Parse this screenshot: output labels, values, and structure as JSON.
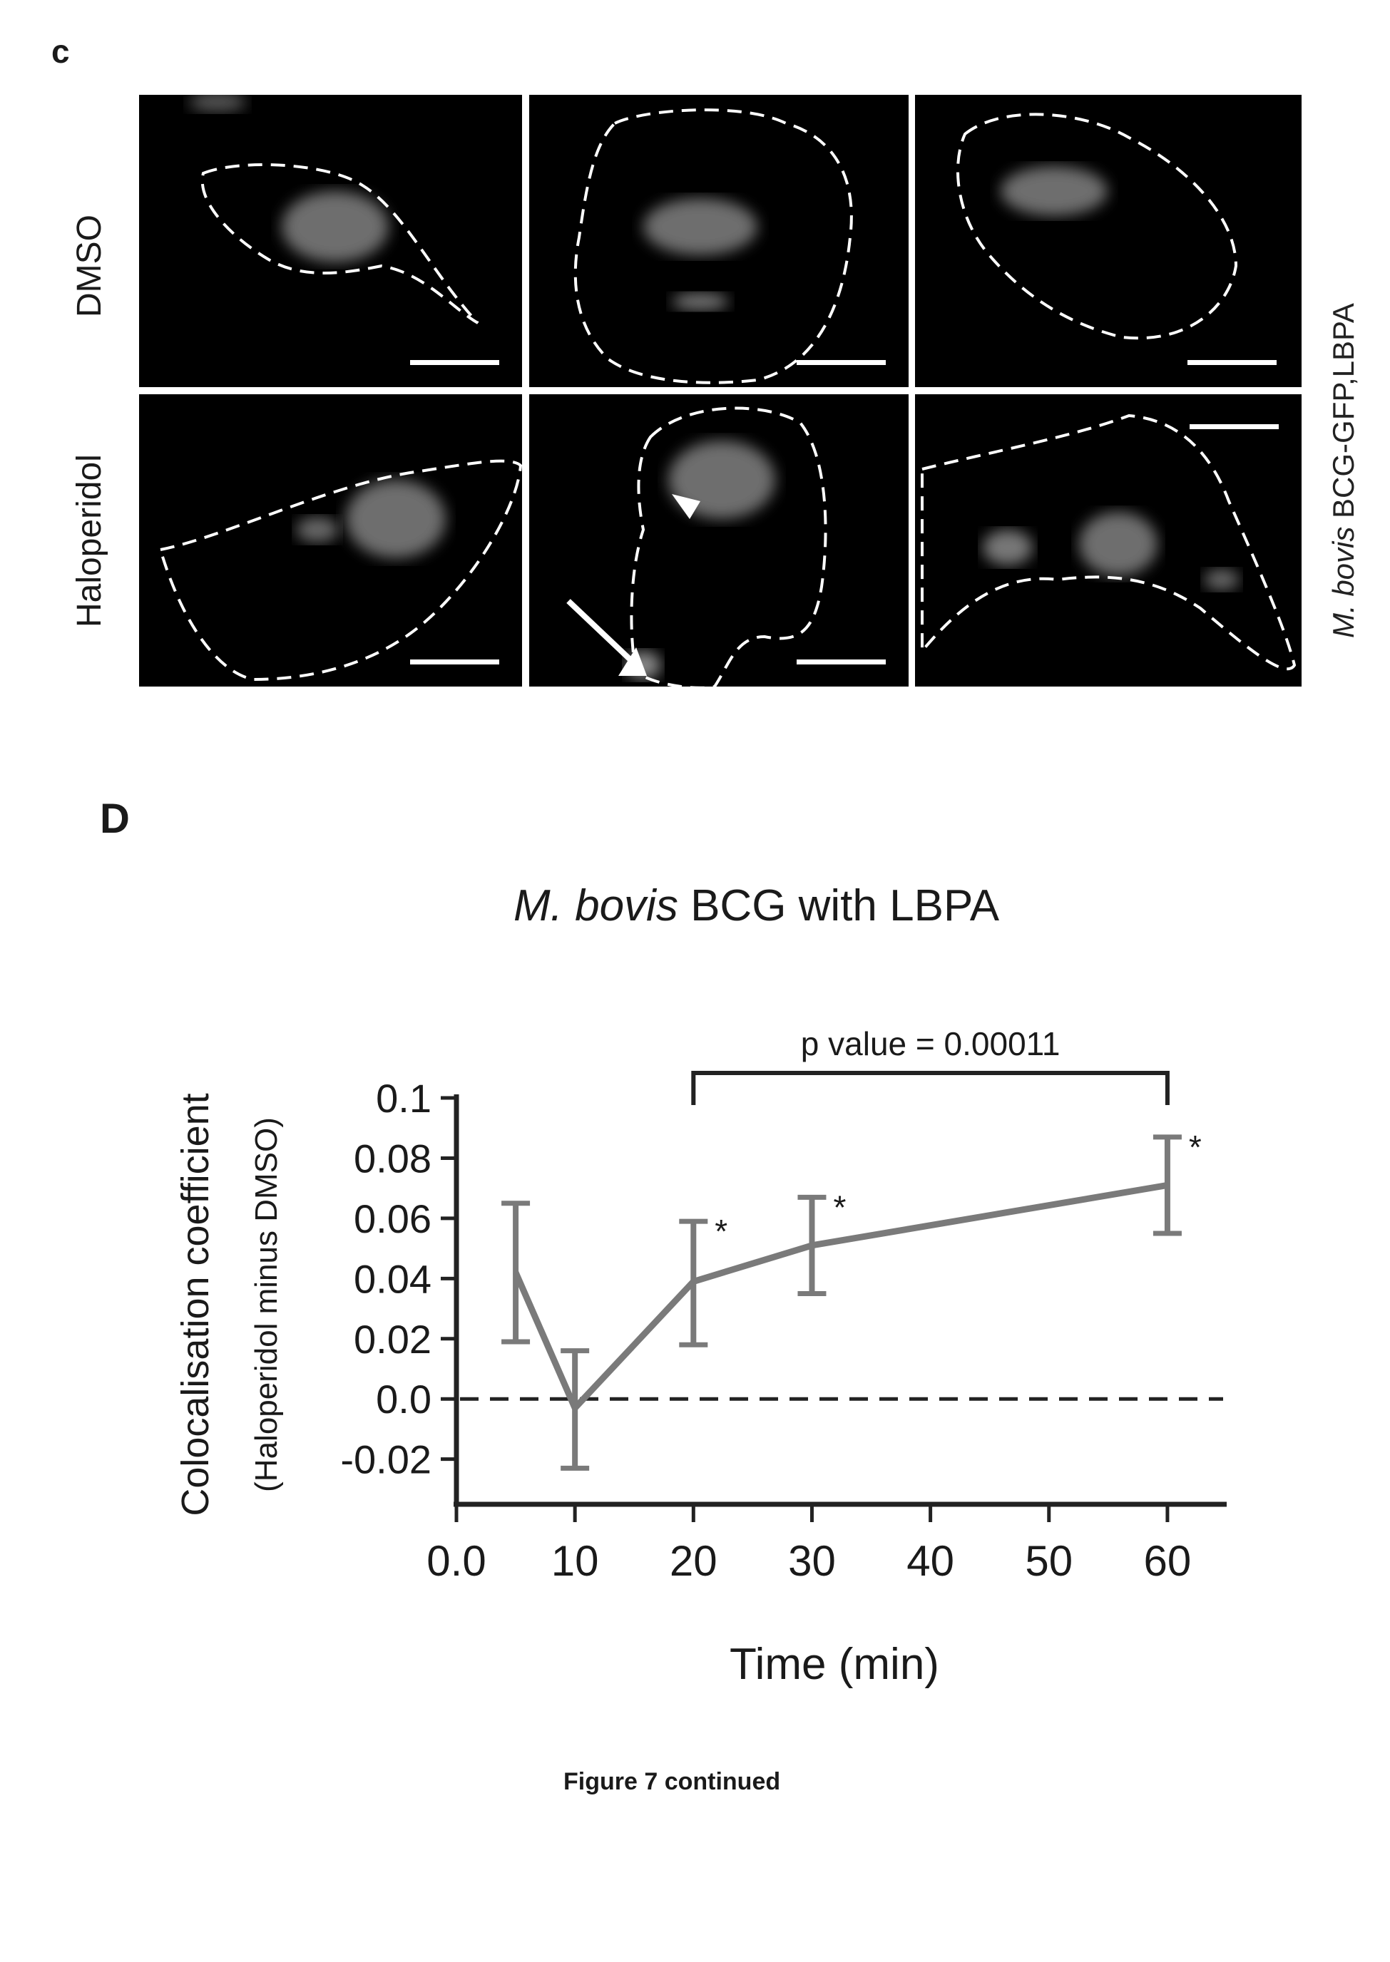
{
  "panel_c": {
    "label": "c",
    "row_labels": [
      "DMSO",
      "Haloperidol"
    ],
    "side_label_italic": "M. bovis",
    "side_label_rest": " BCG-GFP,LBPA"
  },
  "panel_d": {
    "label": "D",
    "title_italic": "M. bovis",
    "title_rest": " BCG with LBPA"
  },
  "caption": "Figure 7 continued",
  "chart_data": {
    "type": "line",
    "title": "M. bovis BCG with LBPA",
    "xlabel": "Time (min)",
    "ylabel": "Colocalisation coefficient",
    "ylabel2": "(Haloperidol minus DMSO)",
    "x_ticks": [
      "0.0",
      "10",
      "20",
      "30",
      "40",
      "50",
      "60"
    ],
    "y_ticks": [
      "0.1",
      "0.08",
      "0.06",
      "0.04",
      "0.02",
      "0.0",
      "-0.02"
    ],
    "xlim": [
      0,
      65
    ],
    "ylim": [
      -0.035,
      0.1
    ],
    "x": [
      5,
      10,
      20,
      30,
      60
    ],
    "y": [
      0.042,
      -0.003,
      0.039,
      0.051,
      0.071
    ],
    "err_low": [
      0.019,
      -0.023,
      0.018,
      0.035,
      0.055
    ],
    "err_high": [
      0.065,
      0.016,
      0.059,
      0.067,
      0.087
    ],
    "significant": [
      false,
      false,
      true,
      true,
      true
    ],
    "significance_marker": "*",
    "reference_line_y": 0.0,
    "bracket": {
      "x_start": 20,
      "x_end": 60,
      "label": "p value = 0.00011"
    },
    "line_color": "#7a7a7a"
  }
}
